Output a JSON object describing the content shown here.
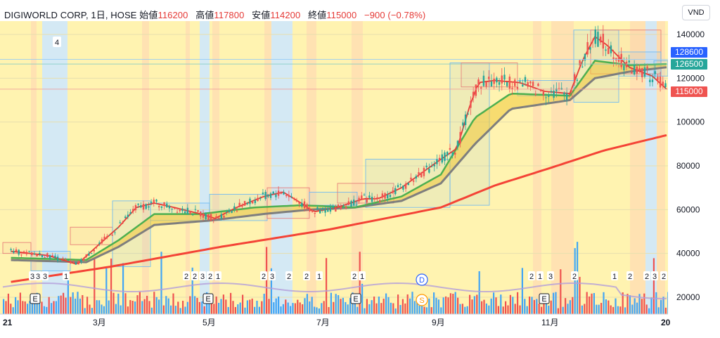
{
  "legend": {
    "title": "DIGIWORLD CORP, 1日, HOSE",
    "open_label": "始値",
    "open": "116200",
    "high_label": "高値",
    "high": "117800",
    "low_label": "安値",
    "low": "114200",
    "close_label": "終値",
    "close": "115000",
    "change": "−900 (−0.78%)"
  },
  "unit_button": "VND",
  "badges": {
    "top_count": "4",
    "row_numbers": [
      "3",
      "3",
      "3",
      "1",
      "2",
      "2",
      "3",
      "2",
      "1",
      "2",
      "3",
      "2",
      "2",
      "1",
      "2",
      "1",
      "2",
      "1",
      "3",
      "2",
      "1",
      "2",
      "2",
      "3",
      "2",
      "2"
    ],
    "e_label": "E",
    "d_label": "D",
    "s_label": "S"
  },
  "price_tags": [
    {
      "value": "128600",
      "color": "#2962ff"
    },
    {
      "value": "126500",
      "color": "#26a69a"
    },
    {
      "value": "115000",
      "color": "#ef5350"
    }
  ],
  "chart_data": {
    "type": "candlestick",
    "title": "DIGIWORLD CORP, 1日, HOSE",
    "y_ticks": [
      "140000",
      "120000",
      "100000",
      "80000",
      "60000",
      "40000",
      "20000"
    ],
    "x_ticks": [
      "21",
      "3月",
      "5月",
      "7月",
      "9月",
      "11月",
      "20"
    ],
    "ylim": [
      17000,
      146000
    ],
    "close_series_points": [
      [
        "2021-01-04",
        41000
      ],
      [
        "2021-01-25",
        39000
      ],
      [
        "2021-02-10",
        35000
      ],
      [
        "2021-02-22",
        44000
      ],
      [
        "2021-03-05",
        52000
      ],
      [
        "2021-03-15",
        61000
      ],
      [
        "2021-03-25",
        63000
      ],
      [
        "2021-04-05",
        61000
      ],
      [
        "2021-04-20",
        58000
      ],
      [
        "2021-04-28",
        56000
      ],
      [
        "2021-05-10",
        61000
      ],
      [
        "2021-05-25",
        66000
      ],
      [
        "2021-06-05",
        68000
      ],
      [
        "2021-06-15",
        63000
      ],
      [
        "2021-06-22",
        59000
      ],
      [
        "2021-07-05",
        61000
      ],
      [
        "2021-07-20",
        65000
      ],
      [
        "2021-07-28",
        65000
      ],
      [
        "2021-08-10",
        70000
      ],
      [
        "2021-08-20",
        76000
      ],
      [
        "2021-09-01",
        83000
      ],
      [
        "2021-09-10",
        88000
      ],
      [
        "2021-09-17",
        107000
      ],
      [
        "2021-09-22",
        118000
      ],
      [
        "2021-10-01",
        119000
      ],
      [
        "2021-10-15",
        118000
      ],
      [
        "2021-10-29",
        114000
      ],
      [
        "2021-11-12",
        113000
      ],
      [
        "2021-11-19",
        128000
      ],
      [
        "2021-11-26",
        139000
      ],
      [
        "2021-12-03",
        135000
      ],
      [
        "2021-12-15",
        125000
      ],
      [
        "2021-12-28",
        121000
      ],
      [
        "2022-01-05",
        115000
      ]
    ],
    "ema_fast_points": [
      [
        "2021-01-04",
        38000
      ],
      [
        "2021-02-15",
        37000
      ],
      [
        "2021-03-05",
        46000
      ],
      [
        "2021-03-25",
        58000
      ],
      [
        "2021-04-20",
        58000
      ],
      [
        "2021-05-20",
        61000
      ],
      [
        "2021-06-15",
        62000
      ],
      [
        "2021-07-15",
        61000
      ],
      [
        "2021-08-10",
        66000
      ],
      [
        "2021-09-01",
        76000
      ],
      [
        "2021-09-20",
        102000
      ],
      [
        "2021-10-10",
        113000
      ],
      [
        "2021-11-12",
        112000
      ],
      [
        "2021-11-26",
        128000
      ],
      [
        "2021-12-15",
        126000
      ],
      [
        "2022-01-05",
        126500
      ]
    ],
    "ema_slow_points": [
      [
        "2021-01-04",
        37000
      ],
      [
        "2021-02-15",
        36000
      ],
      [
        "2021-03-05",
        43000
      ],
      [
        "2021-03-25",
        53000
      ],
      [
        "2021-04-25",
        55000
      ],
      [
        "2021-05-25",
        58000
      ],
      [
        "2021-06-20",
        60000
      ],
      [
        "2021-07-15",
        61000
      ],
      [
        "2021-08-10",
        64000
      ],
      [
        "2021-09-01",
        72000
      ],
      [
        "2021-09-20",
        90000
      ],
      [
        "2021-10-10",
        106000
      ],
      [
        "2021-11-12",
        110000
      ],
      [
        "2021-11-26",
        120000
      ],
      [
        "2021-12-15",
        123000
      ],
      [
        "2022-01-05",
        125000
      ]
    ],
    "ma200_points": [
      [
        "2021-01-04",
        27000
      ],
      [
        "2021-03-01",
        34000
      ],
      [
        "2021-05-01",
        43000
      ],
      [
        "2021-07-01",
        51000
      ],
      [
        "2021-09-01",
        61000
      ],
      [
        "2021-10-01",
        71000
      ],
      [
        "2021-11-01",
        79000
      ],
      [
        "2021-12-01",
        87000
      ],
      [
        "2022-01-05",
        94000
      ]
    ],
    "price_lines": [
      128600,
      126500,
      115000
    ]
  }
}
